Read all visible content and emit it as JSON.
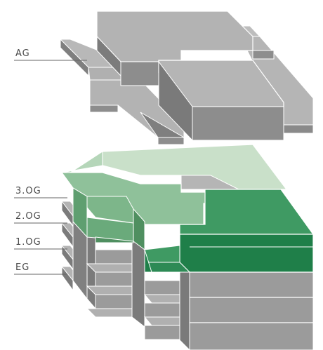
{
  "labels": {
    "ag": "AG",
    "og3": "3.OG",
    "og2": "2.OG",
    "og1": "1.OG",
    "eg": "EG"
  },
  "colors": {
    "roof_grey_top": "#b3b3b3",
    "roof_grey_front": "#8d8d8d",
    "roof_grey_side": "#7a7a7a",
    "pale_green_top": "#c9e0c9",
    "pale_green_side": "#a9cfae",
    "mid_green_top": "#8fc19a",
    "mid_green_side": "#6aaa7b",
    "dark_green_top": "#3f9a63",
    "dark_green_side": "#1f7f49",
    "building_grey_front": "#9b9b9b",
    "building_grey_side": "#7b7b7b",
    "leader_line": "#666666"
  }
}
